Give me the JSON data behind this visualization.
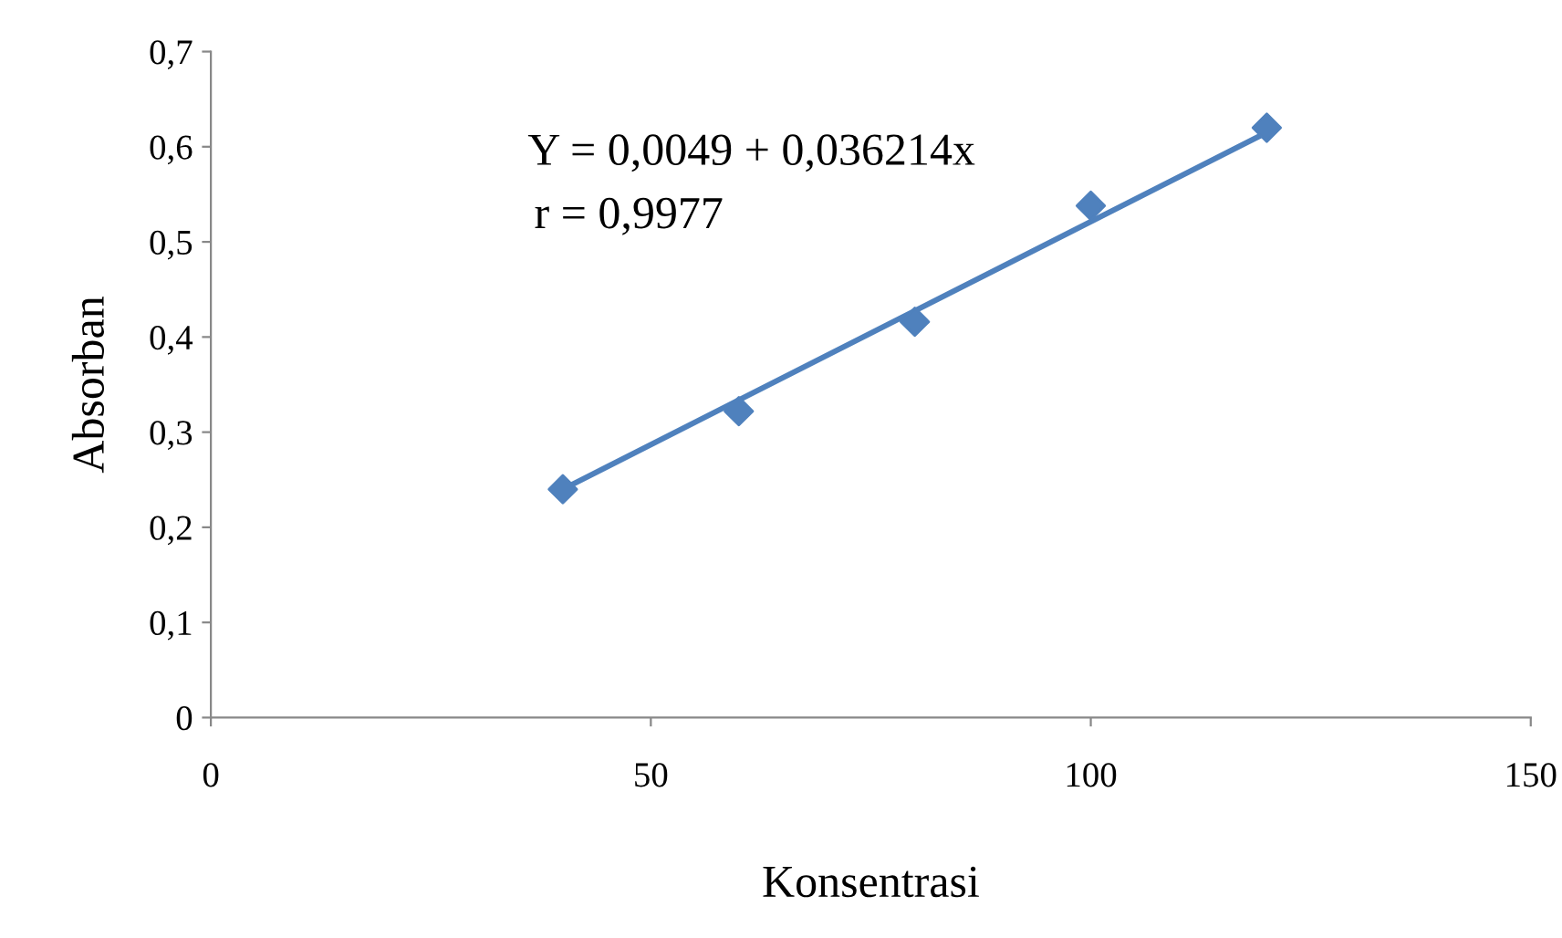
{
  "chart_data": {
    "type": "scatter",
    "xlabel": "Konsentrasi",
    "ylabel": "Absorban",
    "annotations": [
      "Y = 0,0049 + 0,036214x",
      "r = 0,9977"
    ],
    "x": [
      40,
      60,
      80,
      100,
      120
    ],
    "series": [
      {
        "color": "#4f81bd",
        "marker": "diamond",
        "values": [
          0.24,
          0.322,
          0.416,
          0.538,
          0.62
        ]
      },
      {
        "type": "line",
        "color": "#4f81bd",
        "marker": "none",
        "x": [
          40,
          120
        ],
        "values": [
          0.24,
          0.615
        ]
      }
    ],
    "xlim": [
      0,
      150
    ],
    "xticks": [
      0,
      50,
      100,
      150
    ],
    "ylim": [
      0,
      0.7
    ],
    "yticks": [
      {
        "value": 0,
        "label": "0"
      },
      {
        "value": 0.1,
        "label": "0,1"
      },
      {
        "value": 0.2,
        "label": "0,2"
      },
      {
        "value": 0.3,
        "label": "0,3"
      },
      {
        "value": 0.4,
        "label": "0,4"
      },
      {
        "value": 0.5,
        "label": "0,5"
      },
      {
        "value": 0.6,
        "label": "0,6"
      },
      {
        "value": 0.7,
        "label": "0,7"
      }
    ],
    "grid": false,
    "legend": false
  }
}
